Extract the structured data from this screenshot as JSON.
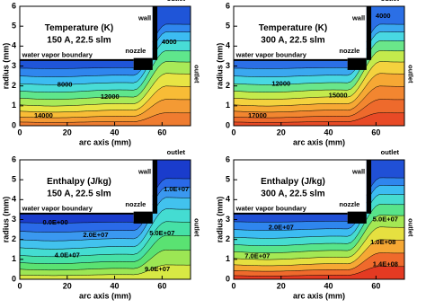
{
  "chart_data": [
    {
      "type": "contour",
      "title": "Temperature (K)",
      "subtitle": "150 A, 22.5 slm",
      "xlabel": "arc axis (mm)",
      "ylabel": "radius (mm)",
      "xlim": [
        0,
        72
      ],
      "ylim": [
        0,
        6
      ],
      "xticks": [
        0,
        20,
        40,
        60
      ],
      "yticks": [
        0,
        1,
        2,
        3,
        4,
        5,
        6
      ],
      "annotations": [
        "wall",
        "outlet",
        "nozzle",
        "water vapor boundary",
        "outlet"
      ],
      "contour_labels": [
        4000,
        8000,
        12000,
        14000
      ],
      "colors": [
        "#1f55d8",
        "#2f86ee",
        "#3cbcf2",
        "#48dcd6",
        "#5fe68c",
        "#a8ea58",
        "#e8e444",
        "#f8bc36",
        "#f49a34",
        "#ef7c30"
      ]
    },
    {
      "type": "contour",
      "title": "Temperature (K)",
      "subtitle": "300 A, 22.5 slm",
      "xlabel": "arc axis (mm)",
      "ylabel": "radius (mm)",
      "xlim": [
        0,
        72
      ],
      "ylim": [
        0,
        6
      ],
      "xticks": [
        0,
        20,
        40,
        60
      ],
      "yticks": [
        0,
        1,
        2,
        3,
        4,
        5,
        6
      ],
      "annotations": [
        "wall",
        "outlet",
        "nozzle",
        "water vapor boundary",
        "outlet"
      ],
      "contour_labels": [
        4000,
        12000,
        15000,
        17000
      ],
      "colors": [
        "#2b6fe6",
        "#3aa8f0",
        "#48d8e2",
        "#6ae68a",
        "#c4ea4c",
        "#f4d23e",
        "#f6a834",
        "#f28630",
        "#ee6a2c",
        "#e84a26"
      ]
    },
    {
      "type": "contour",
      "title": "Enthalpy (J/kg)",
      "subtitle": "150 A, 22.5 slm",
      "xlabel": "arc axis (mm)",
      "ylabel": "radius (mm)",
      "xlim": [
        0,
        72
      ],
      "ylim": [
        0,
        6
      ],
      "xticks": [
        0,
        20,
        40,
        60
      ],
      "yticks": [
        0,
        1,
        2,
        3,
        4,
        5,
        6
      ],
      "annotations": [
        "wall",
        "outlet",
        "nozzle",
        "water vapor boundary",
        "outlet"
      ],
      "contour_labels": [
        {
          "value": 0,
          "label": "0.0E+00"
        },
        {
          "value": 20000000,
          "label": "2.0E+07"
        },
        {
          "value": 40000000,
          "label": "4.0E+07"
        },
        {
          "value": 50000000,
          "label": "5.0E+07"
        },
        {
          "value": 90000000,
          "label": "9.0E+07"
        },
        {
          "value": 10000000,
          "label": "1.0E+07"
        }
      ],
      "colors": [
        "#1a3ccc",
        "#2a6ae8",
        "#3a98f0",
        "#42c2ee",
        "#44dcd2",
        "#46e0a6",
        "#5ae272",
        "#9ce654",
        "#d8e844"
      ]
    },
    {
      "type": "contour",
      "title": "Enthalpy (J/kg)",
      "subtitle": "300 A, 22.5 slm",
      "xlabel": "arc axis (mm)",
      "ylabel": "radius (mm)",
      "xlim": [
        0,
        72
      ],
      "ylim": [
        0,
        6
      ],
      "xticks": [
        0,
        20,
        40,
        60
      ],
      "yticks": [
        0,
        1,
        2,
        3,
        4,
        5,
        6
      ],
      "annotations": [
        "wall",
        "outlet",
        "nozzle",
        "water vapor boundary",
        "outlet"
      ],
      "contour_labels": [
        {
          "value": 20000000,
          "label": "2.0E+07"
        },
        {
          "value": 50000000,
          "label": "5.0E+07"
        },
        {
          "value": 70000000,
          "label": "7.0E+07"
        },
        {
          "value": 100000000,
          "label": "1.0E+08"
        },
        {
          "value": 140000000,
          "label": "1.4E+08"
        }
      ],
      "colors": [
        "#2050d6",
        "#2f86ee",
        "#3cbcf2",
        "#46dcd0",
        "#58e48a",
        "#a4e854",
        "#e6e040",
        "#f6a834",
        "#ef6a2c",
        "#e43a22"
      ]
    }
  ]
}
